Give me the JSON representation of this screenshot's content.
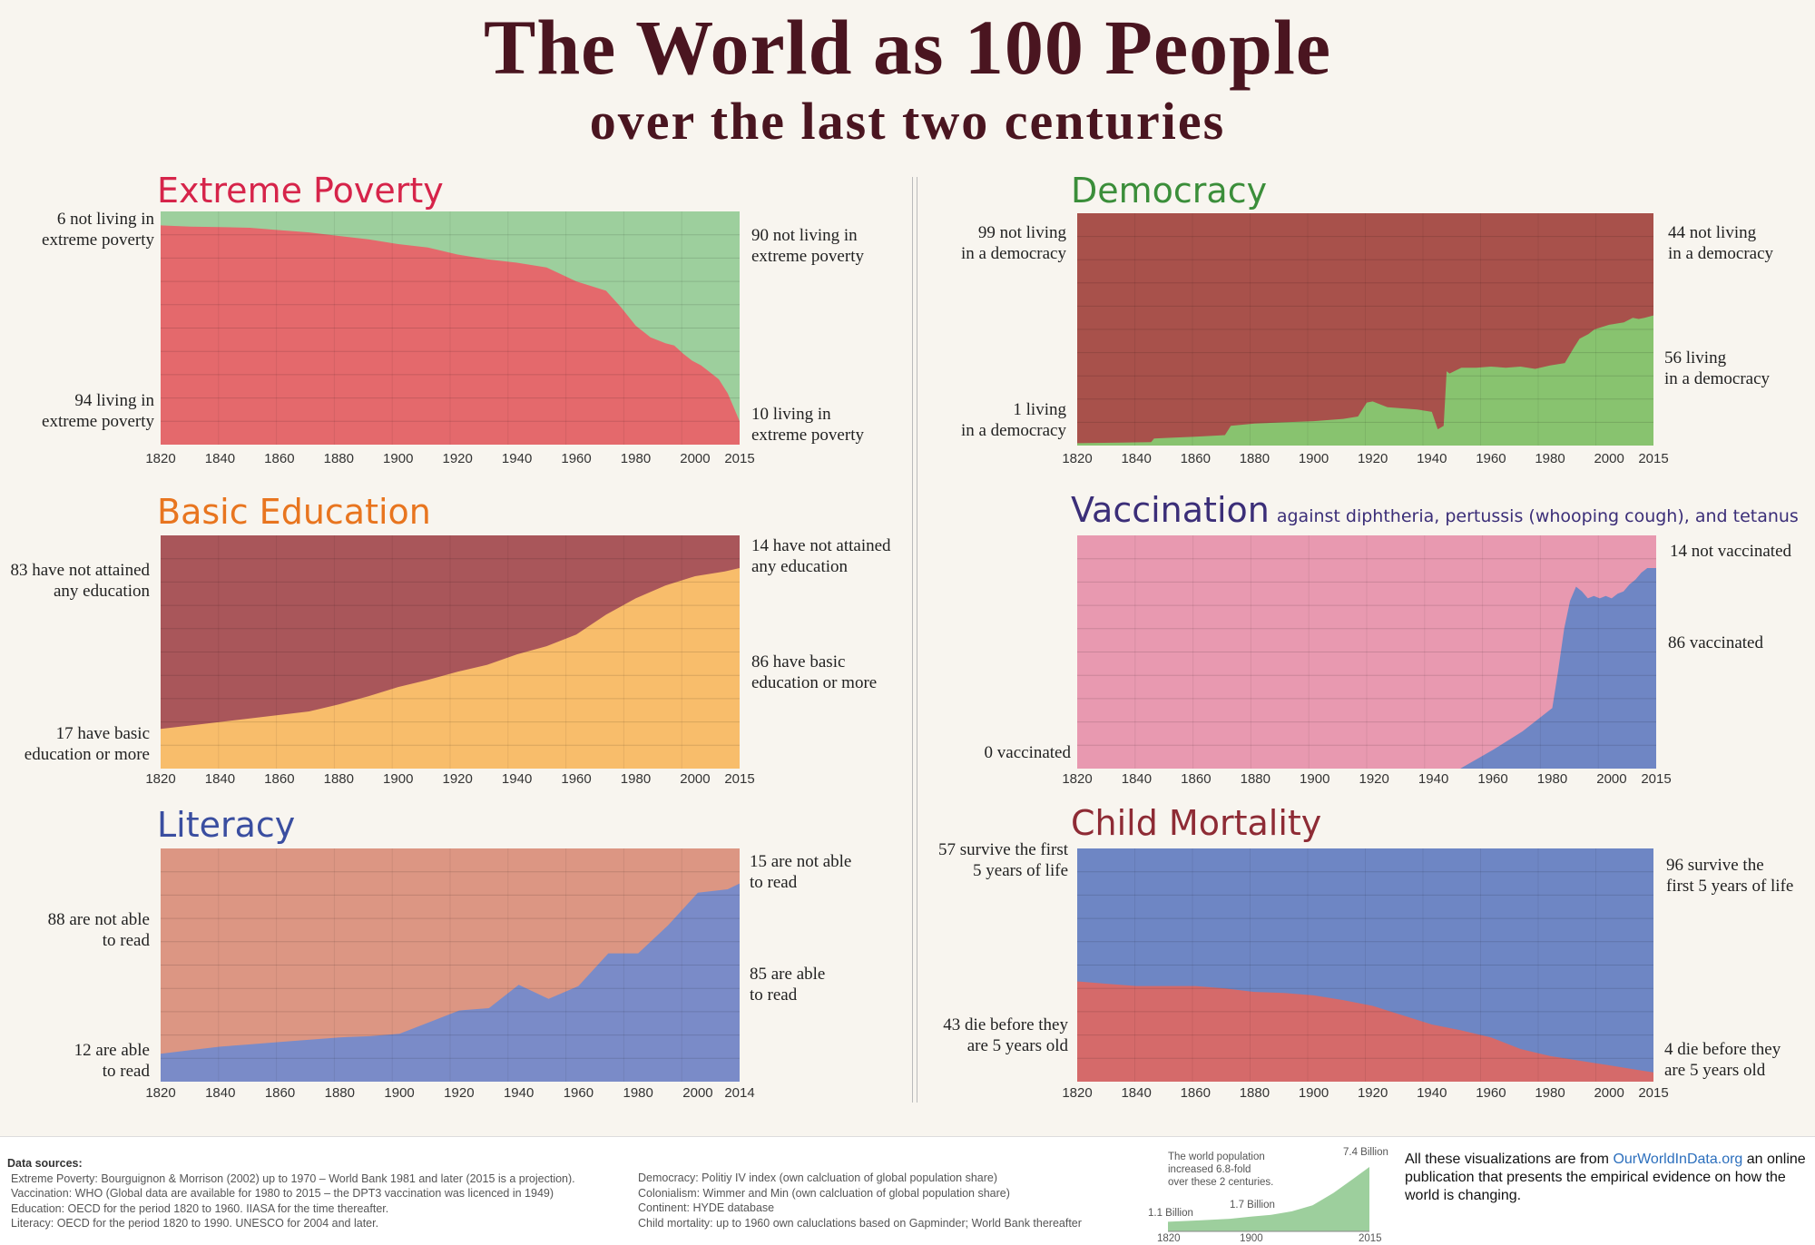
{
  "header": {
    "title": "The World as 100 People",
    "subtitle": "over the last two centuries"
  },
  "colors": {
    "red": "#e4696c",
    "green": "#9dcf9d",
    "darkred": "#a8514b",
    "dem_green": "#88c36f",
    "orange": "#f8bd6b",
    "edu_dark": "#a9565a",
    "pink": "#e899b0",
    "blue": "#6f86c4",
    "salmon": "#dc9683",
    "lit_blue": "#7a8bc8",
    "cm_blue": "#6e86c4",
    "cm_red": "#d56a6a"
  },
  "chart_data": [
    {
      "id": "poverty",
      "type": "area",
      "title": "Extreme Poverty",
      "title_color": "#d6244a",
      "x": [
        1820,
        1830,
        1840,
        1850,
        1860,
        1870,
        1880,
        1890,
        1900,
        1910,
        1920,
        1930,
        1940,
        1950,
        1960,
        1970,
        1975,
        1980,
        1985,
        1990,
        1993,
        1996,
        1999,
        2002,
        2005,
        2008,
        2011,
        2013,
        2015
      ],
      "y": [
        94,
        93.5,
        93.3,
        93,
        92,
        91,
        89.5,
        88,
        86,
        84.5,
        81.5,
        79.5,
        78,
        76,
        70,
        66,
        59,
        51,
        46,
        43.5,
        42.5,
        39,
        36,
        34,
        31,
        28,
        22,
        16,
        10
      ],
      "lower_name": "living in extreme poverty",
      "upper_name": "not living in extreme poverty",
      "lower_color": "#e4696c",
      "upper_color": "#9dcf9d",
      "ticks": [
        "1820",
        "1840",
        "1860",
        "1880",
        "1900",
        "1920",
        "1940",
        "1960",
        "1980",
        "2000",
        "2015"
      ],
      "labels": {
        "left_top": "6 not living in\nextreme poverty",
        "left_bottom": "94 living in\nextreme poverty",
        "right_top": "90 not living in\nextreme poverty",
        "right_bottom": "10 living in\nextreme poverty"
      }
    },
    {
      "id": "democracy",
      "type": "area",
      "title": "Democracy",
      "title_color": "#3b8e3a",
      "x": [
        1820,
        1835,
        1845,
        1846,
        1850,
        1860,
        1870,
        1872,
        1880,
        1890,
        1900,
        1910,
        1915,
        1918,
        1920,
        1925,
        1930,
        1935,
        1940,
        1942,
        1944,
        1945,
        1946,
        1950,
        1955,
        1960,
        1965,
        1970,
        1975,
        1980,
        1985,
        1988,
        1990,
        1993,
        1995,
        2000,
        2005,
        2008,
        2010,
        2012,
        2015
      ],
      "y": [
        1,
        1.3,
        1.5,
        3,
        3.3,
        3.8,
        4.5,
        8.5,
        9.5,
        10,
        10.5,
        11.5,
        12.5,
        18.5,
        19,
        16.5,
        16,
        15.5,
        14.5,
        7,
        8.5,
        32,
        31,
        33.5,
        33.5,
        34,
        33.5,
        34,
        33,
        34.5,
        35.5,
        42,
        46,
        48,
        50,
        52,
        53,
        55,
        54.5,
        55,
        56
      ],
      "lower_name": "living in a democracy",
      "upper_name": "not living in a democracy",
      "lower_color": "#88c36f",
      "upper_color": "#a8514b",
      "ticks": [
        "1820",
        "1840",
        "1860",
        "1880",
        "1900",
        "1920",
        "1940",
        "1960",
        "1980",
        "2000",
        "2015"
      ],
      "labels": {
        "left_top": "99 not living\nin a democracy",
        "left_bottom": "1 living\nin a democracy",
        "right_top": "44 not living\nin a democracy",
        "right_bottom": "56 living\nin a democracy"
      }
    },
    {
      "id": "education",
      "type": "area",
      "title": "Basic Education",
      "title_color": "#e8751f",
      "x": [
        1820,
        1830,
        1840,
        1850,
        1860,
        1870,
        1880,
        1890,
        1900,
        1910,
        1920,
        1930,
        1940,
        1950,
        1960,
        1970,
        1980,
        1990,
        2000,
        2010,
        2015
      ],
      "y": [
        17,
        18.5,
        20,
        21.5,
        23,
        24.5,
        27.5,
        31,
        35,
        38,
        41.5,
        44.5,
        49,
        52.5,
        57.5,
        66,
        73,
        78.5,
        82.5,
        84.5,
        86
      ],
      "lower_name": "have basic education or more",
      "upper_name": "have not attained any education",
      "lower_color": "#f8bd6b",
      "upper_color": "#a9565a",
      "ticks": [
        "1820",
        "1840",
        "1860",
        "1880",
        "1900",
        "1920",
        "1940",
        "1960",
        "1980",
        "2000",
        "2015"
      ],
      "labels": {
        "left_top": "83 have not attained\nany education",
        "left_bottom": "17 have basic\neducation or more",
        "right_top": "14 have not attained\nany education",
        "right_bottom": "86 have basic\neducation or more"
      }
    },
    {
      "id": "vaccination",
      "type": "area",
      "title": "Vaccination",
      "title_color": "#3b2e78",
      "subtitle": "against diphtheria, pertussis (whooping cough), and tetanus",
      "x": [
        1820,
        1949,
        1960,
        1970,
        1980,
        1982,
        1984,
        1986,
        1988,
        1990,
        1992,
        1994,
        1996,
        1998,
        2000,
        2002,
        2004,
        2006,
        2008,
        2010,
        2012,
        2015
      ],
      "y": [
        0,
        0,
        8,
        16,
        26,
        42,
        60,
        72,
        78,
        76,
        73,
        74,
        73,
        74,
        73,
        75,
        76,
        79,
        81,
        84,
        86,
        86
      ],
      "lower_name": "vaccinated",
      "upper_name": "not vaccinated",
      "lower_color": "#6f86c4",
      "upper_color": "#e899b0",
      "ticks": [
        "1820",
        "1840",
        "1860",
        "1880",
        "1900",
        "1920",
        "1940",
        "1960",
        "1980",
        "2000",
        "2015"
      ],
      "labels": {
        "left_top": "",
        "left_bottom": "0 vaccinated",
        "right_top": "14 not vaccinated",
        "right_bottom": "86 vaccinated"
      }
    },
    {
      "id": "literacy",
      "type": "area",
      "title": "Literacy",
      "title_color": "#3a4ea0",
      "x": [
        1820,
        1830,
        1840,
        1850,
        1860,
        1870,
        1880,
        1890,
        1900,
        1910,
        1920,
        1930,
        1940,
        1950,
        1960,
        1970,
        1980,
        1990,
        2000,
        2010,
        2014
      ],
      "y": [
        12,
        13.5,
        15,
        16,
        17,
        18,
        19,
        19.5,
        20.5,
        25.5,
        30.5,
        31.5,
        41.5,
        35.5,
        41,
        55,
        55,
        67,
        81,
        82.5,
        85
      ],
      "lower_name": "are able to read",
      "upper_name": "are not able to read",
      "lower_color": "#7a8bc8",
      "upper_color": "#dc9683",
      "ticks": [
        "1820",
        "1840",
        "1860",
        "1880",
        "1900",
        "1920",
        "1940",
        "1960",
        "1980",
        "2000",
        "2014"
      ],
      "labels": {
        "left_top": "88 are not able\nto read",
        "left_bottom": "12 are able\nto read",
        "right_top": "15 are not able\nto read",
        "right_bottom": "85 are able\nto read"
      }
    },
    {
      "id": "mortality",
      "type": "area",
      "title": "Child Mortality",
      "title_color": "#8e2b35",
      "x": [
        1820,
        1830,
        1840,
        1850,
        1860,
        1870,
        1880,
        1890,
        1900,
        1910,
        1920,
        1930,
        1940,
        1950,
        1960,
        1970,
        1980,
        1990,
        2000,
        2010,
        2015
      ],
      "y": [
        43,
        42,
        41,
        41,
        41,
        40,
        38.5,
        38,
        37,
        35,
        32.5,
        28.5,
        24.5,
        22,
        19,
        14,
        11,
        9,
        7,
        5,
        4
      ],
      "lower_name": "die before they are 5 years old",
      "upper_name": "survive the first 5 years of life",
      "lower_color": "#d56a6a",
      "upper_color": "#6e86c4",
      "ticks": [
        "1820",
        "1840",
        "1860",
        "1880",
        "1900",
        "1920",
        "1940",
        "1960",
        "1980",
        "2000",
        "2015"
      ],
      "labels": {
        "left_top": "57 survive the first\n5 years of life",
        "left_bottom": "43 die before they\nare 5 years old",
        "right_top": "96 survive the\nfirst 5 years of life",
        "right_bottom": "4 die before they\nare 5 years old"
      }
    },
    {
      "id": "population",
      "type": "area",
      "title": "",
      "x": [
        1820,
        1850,
        1880,
        1900,
        1920,
        1940,
        1960,
        1980,
        2000,
        2015
      ],
      "y": [
        1.1,
        1.26,
        1.45,
        1.7,
        1.9,
        2.3,
        3.0,
        4.4,
        6.1,
        7.4
      ],
      "ticks": [
        "1820",
        "1900",
        "2015"
      ],
      "labels": {
        "note": "The world population\nincreased 6.8-fold\nover these 2 centuries.",
        "start": "1.1 Billion",
        "mid": "1.7 Billion",
        "end": "7.4 Billion"
      }
    }
  ],
  "footer": {
    "sources_title": "Data sources:",
    "sources_left": [
      "Extreme Poverty: Bourguignon & Morrison (2002) up to 1970 – World Bank 1981 and later (2015 is a projection).",
      "Vaccination: WHO (Global data are available for 1980 to 2015 – the DPT3 vaccination was licenced in 1949)",
      "Education: OECD for the period 1820 to 1960. IIASA for the time thereafter.",
      "Literacy: OECD for the period 1820 to 1990. UNESCO for 2004 and later."
    ],
    "sources_right": [
      "Democracy: Politiy IV index (own calcluation of global population share)",
      "Colonialism: Wimmer and Min (own calcluation of global population share)",
      "Continent: HYDE database",
      "Child mortality: up to 1960 own caluclations based on Gapminder; World Bank thereafter"
    ],
    "owid_before": "All these visualizations are from ",
    "owid_link": "OurWorldInData.org",
    "owid_after": " an online publication that presents the empirical evidence on how the world is changing."
  }
}
